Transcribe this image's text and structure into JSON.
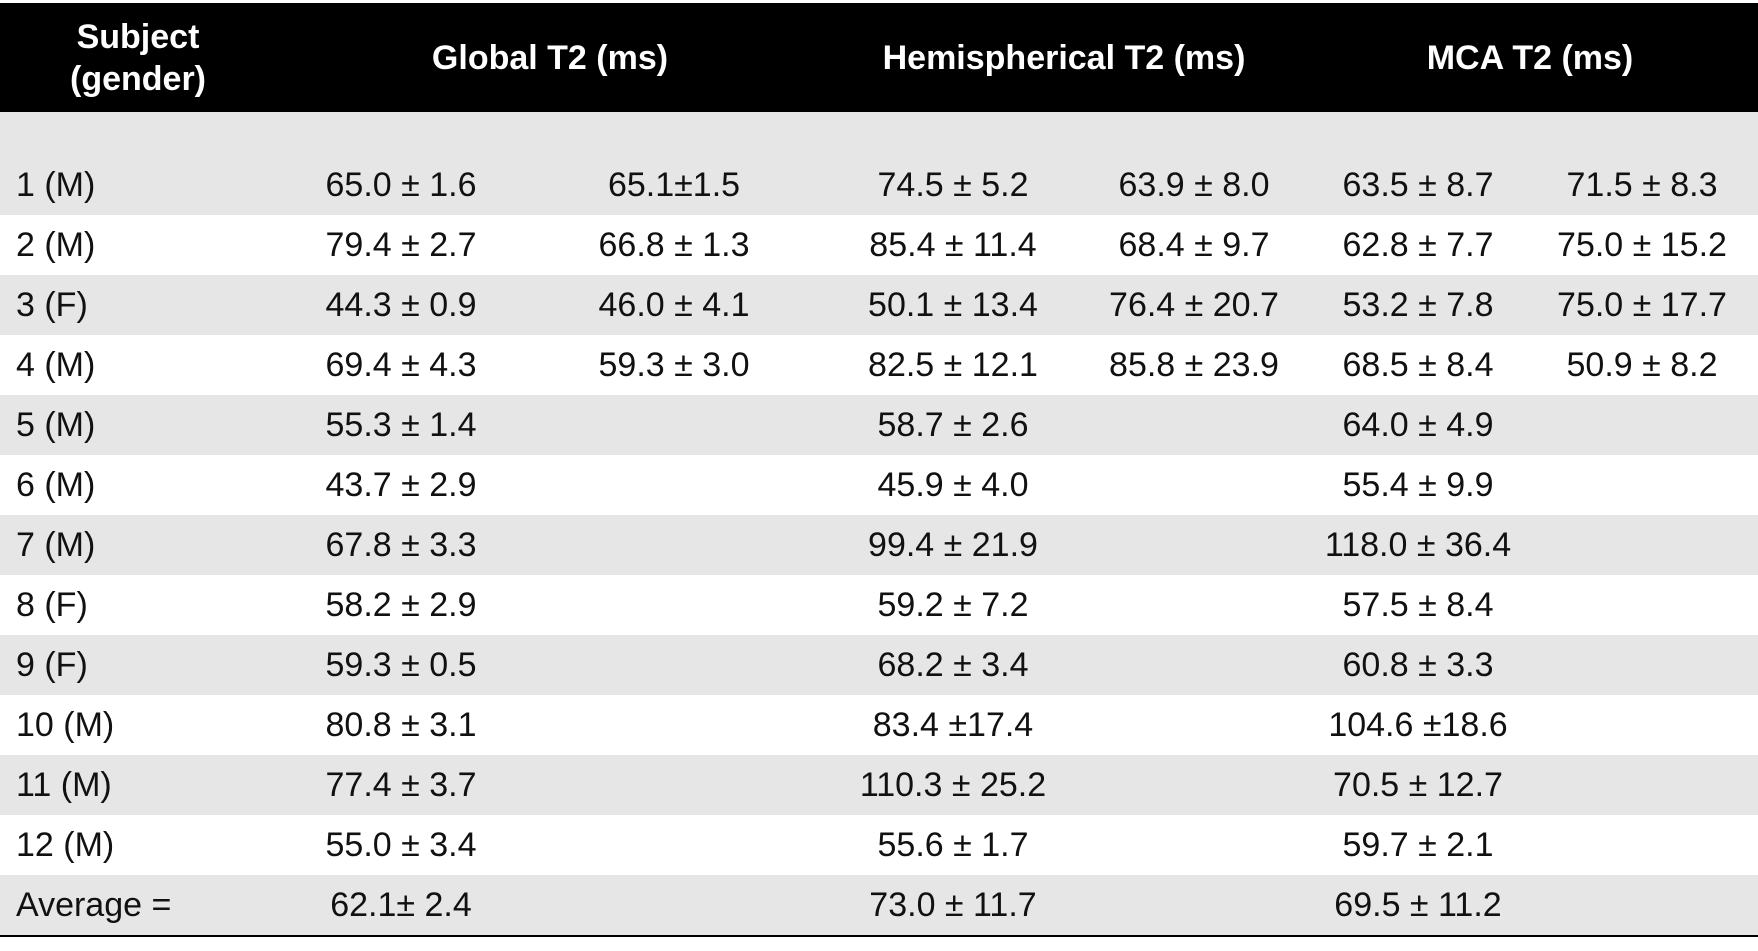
{
  "table": {
    "header": [
      "Subject (gender)",
      "Global T2 (ms)",
      "Hemispherical T2 (ms)",
      "MCA T2 (ms)"
    ],
    "rows": [
      {
        "subject": "1 (M)",
        "global": [
          "65.0 ± 1.6",
          "65.1±1.5"
        ],
        "hemispherical": [
          "74.5 ± 5.2",
          "63.9 ± 8.0"
        ],
        "mca": [
          "63.5 ± 8.7",
          "71.5 ± 8.3"
        ]
      },
      {
        "subject": "2 (M)",
        "global": [
          "79.4 ± 2.7",
          "66.8 ± 1.3"
        ],
        "hemispherical": [
          "85.4 ± 11.4",
          "68.4 ± 9.7"
        ],
        "mca": [
          "62.8 ± 7.7",
          "75.0 ± 15.2"
        ]
      },
      {
        "subject": "3 (F)",
        "global": [
          "44.3 ± 0.9",
          "46.0 ± 4.1"
        ],
        "hemispherical": [
          "50.1 ± 13.4",
          "76.4 ± 20.7"
        ],
        "mca": [
          "53.2 ± 7.8",
          "75.0 ± 17.7"
        ]
      },
      {
        "subject": "4 (M)",
        "global": [
          "69.4 ± 4.3",
          "59.3 ± 3.0"
        ],
        "hemispherical": [
          "82.5 ± 12.1",
          "85.8 ± 23.9"
        ],
        "mca": [
          "68.5 ± 8.4",
          "50.9 ± 8.2"
        ]
      },
      {
        "subject": "5 (M)",
        "global": [
          "55.3 ± 1.4"
        ],
        "hemispherical": [
          "58.7 ± 2.6"
        ],
        "mca": [
          "64.0 ± 4.9"
        ]
      },
      {
        "subject": "6 (M)",
        "global": [
          "43.7 ± 2.9"
        ],
        "hemispherical": [
          "45.9 ± 4.0"
        ],
        "mca": [
          "55.4 ± 9.9"
        ]
      },
      {
        "subject": "7 (M)",
        "global": [
          "67.8 ± 3.3"
        ],
        "hemispherical": [
          "99.4 ± 21.9"
        ],
        "mca": [
          "118.0 ± 36.4"
        ]
      },
      {
        "subject": "8 (F)",
        "global": [
          "58.2 ± 2.9"
        ],
        "hemispherical": [
          "59.2 ± 7.2"
        ],
        "mca": [
          "57.5 ± 8.4"
        ]
      },
      {
        "subject": "9 (F)",
        "global": [
          "59.3 ± 0.5"
        ],
        "hemispherical": [
          "68.2 ± 3.4"
        ],
        "mca": [
          "60.8 ± 3.3"
        ]
      },
      {
        "subject": "10 (M)",
        "global": [
          "80.8 ± 3.1"
        ],
        "hemispherical": [
          "83.4 ±17.4"
        ],
        "mca": [
          "104.6 ±18.6"
        ]
      },
      {
        "subject": "11 (M)",
        "global": [
          "77.4 ± 3.7"
        ],
        "hemispherical": [
          "110.3 ± 25.2"
        ],
        "mca": [
          "70.5 ± 12.7"
        ]
      },
      {
        "subject": "12 (M)",
        "global": [
          "55.0 ± 3.4"
        ],
        "hemispherical": [
          "55.6 ± 1.7"
        ],
        "mca": [
          "59.7 ± 2.1"
        ]
      },
      {
        "subject": "Average =",
        "global": [
          "62.1± 2.4"
        ],
        "hemispherical": [
          "73.0 ± 11.7"
        ],
        "mca": [
          "69.5 ± 11.2"
        ]
      }
    ]
  }
}
